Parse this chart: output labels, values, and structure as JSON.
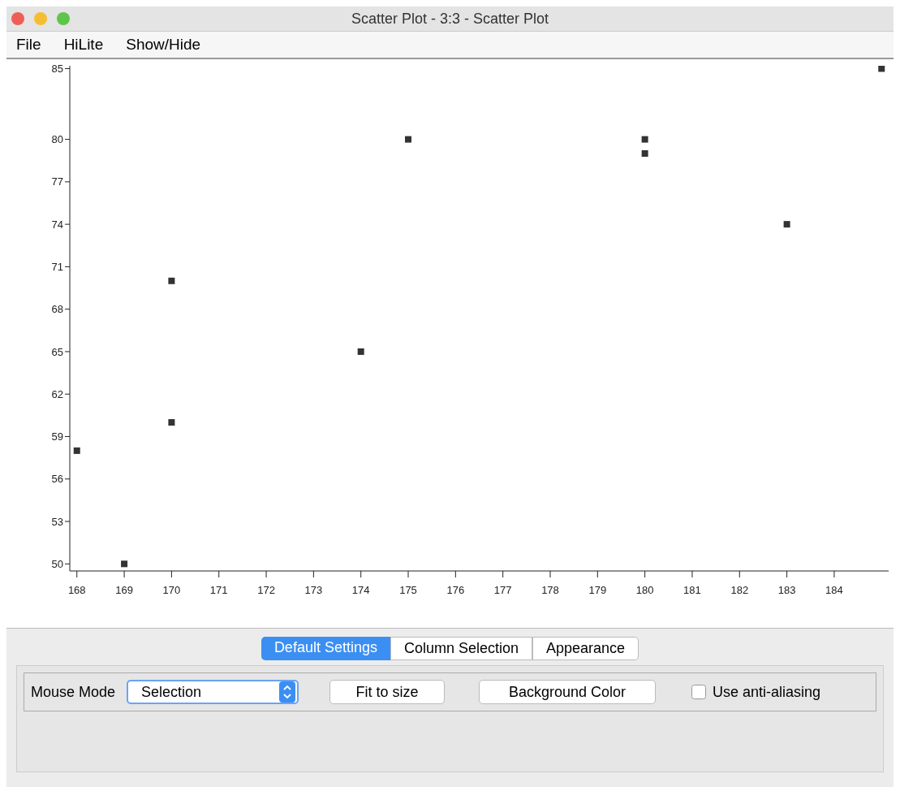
{
  "chart_data": {
    "type": "scatter",
    "title": "Scatter Plot - 3:3 - Scatter Plot",
    "x": [
      168,
      169,
      170,
      170,
      174,
      175,
      180,
      180,
      183,
      185
    ],
    "series": [
      {
        "color": "#333333",
        "values": [
          58,
          50,
          70,
          60,
          65,
          80,
          80,
          79,
          74,
          85
        ]
      }
    ],
    "xlim": [
      167.85,
      185.15
    ],
    "xticks": [
      168,
      169,
      170,
      171,
      172,
      173,
      174,
      175,
      176,
      177,
      178,
      179,
      180,
      181,
      182,
      183,
      184
    ],
    "ylim": [
      49.5,
      85.2
    ],
    "yticks": [
      50,
      53,
      56,
      59,
      62,
      65,
      68,
      71,
      74,
      77,
      80,
      85
    ],
    "grid": false,
    "legend": false,
    "marker": "square",
    "annotations": [
      "File",
      "HiLite",
      "Show/Hide",
      "Default Settings",
      "Column Selection",
      "Appearance",
      "Mouse Mode",
      "Selection",
      "Fit to size",
      "Background Color",
      "Use anti-aliasing"
    ]
  }
}
